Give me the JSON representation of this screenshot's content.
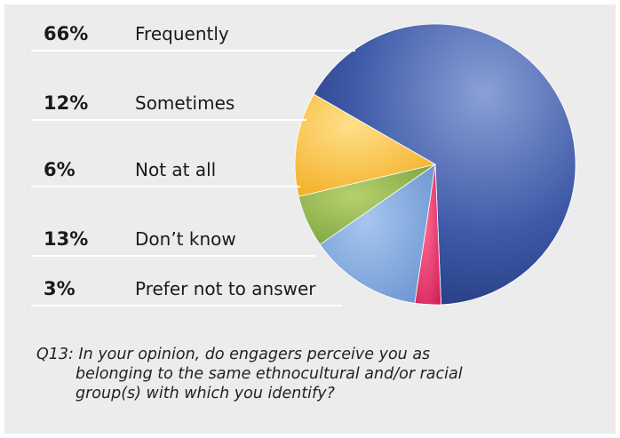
{
  "chart_data": {
    "type": "pie",
    "slices": [
      {
        "percent_label": "66%",
        "label": "Frequently",
        "value": 66,
        "color": "#2e4a98"
      },
      {
        "percent_label": "12%",
        "label": "Sometimes",
        "value": 12,
        "color": "#f7b32b"
      },
      {
        "percent_label": "6%",
        "label": "Not at all",
        "value": 6,
        "color": "#7aa33c"
      },
      {
        "percent_label": "13%",
        "label": "Don’t know",
        "value": 13,
        "color": "#6f9bd6"
      },
      {
        "percent_label": "3%",
        "label": "Prefer not to answer",
        "value": 3,
        "color": "#e0245e"
      }
    ],
    "background": "#ececec",
    "legend_placement": "left"
  },
  "question": {
    "line1": "Q13: In your opinion, do engagers perceive you as",
    "line2": "belonging to the same ethnocultural and/or racial",
    "line3": "group(s) with which you identify?"
  }
}
